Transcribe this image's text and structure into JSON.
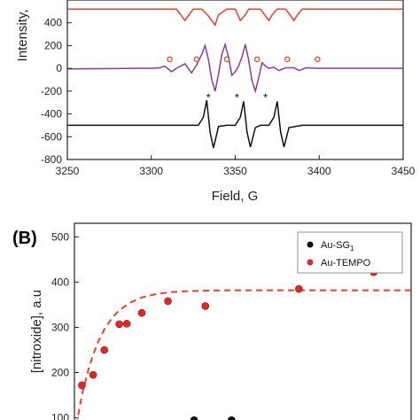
{
  "chart_data": [
    {
      "type": "line",
      "panel_label": "",
      "xlabel": "Field, G",
      "ylabel": "Intensity,",
      "xlim": [
        3250,
        3450
      ],
      "ylim": [
        -800,
        500
      ],
      "xticks": [
        3250,
        3300,
        3350,
        3400,
        3450
      ],
      "yticks": [
        -800,
        -600,
        -400,
        -200,
        0,
        200,
        400
      ],
      "legend": "none",
      "lines": [
        {
          "color": "#e8422a",
          "baseline": 520,
          "x": [
            3250,
            3300,
            3310,
            3315,
            3320,
            3322,
            3325,
            3330,
            3334,
            3338,
            3340,
            3345,
            3350,
            3353,
            3356,
            3358,
            3360,
            3365,
            3370,
            3372,
            3375,
            3380,
            3385,
            3387,
            3390,
            3395,
            3400,
            3450
          ],
          "y": [
            520,
            520,
            520,
            520,
            420,
            460,
            520,
            520,
            460,
            380,
            470,
            520,
            520,
            420,
            470,
            520,
            520,
            520,
            420,
            470,
            520,
            520,
            420,
            470,
            520,
            520,
            520,
            520
          ]
        },
        {
          "color": "#8b3a9e",
          "baseline": 0,
          "x": [
            3250,
            3290,
            3300,
            3305,
            3308,
            3312,
            3316,
            3320,
            3324,
            3327,
            3330,
            3332,
            3334,
            3336,
            3338,
            3340,
            3342,
            3344,
            3346,
            3348,
            3350,
            3352,
            3354,
            3356,
            3358,
            3360,
            3362,
            3364,
            3366,
            3368,
            3370,
            3373,
            3376,
            3380,
            3385,
            3388,
            3392,
            3400,
            3450
          ],
          "y": [
            -5,
            0,
            0,
            5,
            20,
            -30,
            10,
            40,
            -40,
            30,
            120,
            200,
            80,
            -100,
            -200,
            -50,
            120,
            210,
            100,
            -60,
            -30,
            20,
            100,
            210,
            70,
            -110,
            -200,
            -80,
            50,
            20,
            0,
            10,
            -20,
            5,
            5,
            -20,
            5,
            0,
            0
          ]
        },
        {
          "color": "#111111",
          "baseline": -500,
          "x": [
            3250,
            3320,
            3328,
            3331,
            3333,
            3335,
            3337,
            3340,
            3345,
            3350,
            3353,
            3355,
            3357,
            3359,
            3362,
            3365,
            3370,
            3373,
            3375,
            3377,
            3379,
            3382,
            3390,
            3450
          ],
          "y": [
            -500,
            -500,
            -500,
            -430,
            -280,
            -560,
            -700,
            -510,
            -500,
            -500,
            -430,
            -290,
            -560,
            -690,
            -520,
            -500,
            -500,
            -430,
            -290,
            -560,
            -690,
            -520,
            -500,
            -500
          ]
        }
      ],
      "markers": [
        {
          "symbol": "o",
          "color": "#e8422a",
          "x": [
            3311,
            3327,
            3345,
            3363,
            3381,
            3399
          ],
          "y": [
            80,
            80,
            80,
            80,
            80,
            80
          ]
        },
        {
          "symbol": "*",
          "color": "#111111",
          "x": [
            3334,
            3351,
            3368
          ],
          "y": [
            -260,
            -260,
            -260
          ]
        }
      ]
    },
    {
      "type": "scatter",
      "panel_label": "(B)",
      "xlabel": "",
      "ylabel": "[nitroxide], a.u",
      "ylim": [
        100,
        500
      ],
      "yticks": [
        100,
        200,
        300,
        400,
        500
      ],
      "legend": "top-right",
      "series": [
        {
          "name": "Au-SG",
          "name_subscript": "1",
          "color": "#111111",
          "x": [
            32,
            42
          ],
          "y": [
            95,
            95
          ]
        },
        {
          "name": "Au-TEMPO",
          "color": "#e02828",
          "x": [
            2,
            5,
            8,
            12,
            14,
            18,
            25,
            35,
            60,
            80
          ],
          "y": [
            172,
            195,
            250,
            307,
            308,
            332,
            358,
            347,
            385,
            422
          ]
        }
      ],
      "fit": {
        "style": "dashed",
        "color": "#e8422a",
        "x": [
          0,
          2,
          4,
          6,
          8,
          10,
          12,
          15,
          18,
          22,
          26,
          30,
          40,
          50,
          60,
          70,
          80,
          90
        ],
        "y": [
          60,
          150,
          215,
          262,
          296,
          320,
          338,
          355,
          366,
          374,
          378,
          380,
          382,
          382,
          382,
          382,
          382,
          382
        ]
      },
      "xlim": [
        0,
        90
      ]
    }
  ]
}
